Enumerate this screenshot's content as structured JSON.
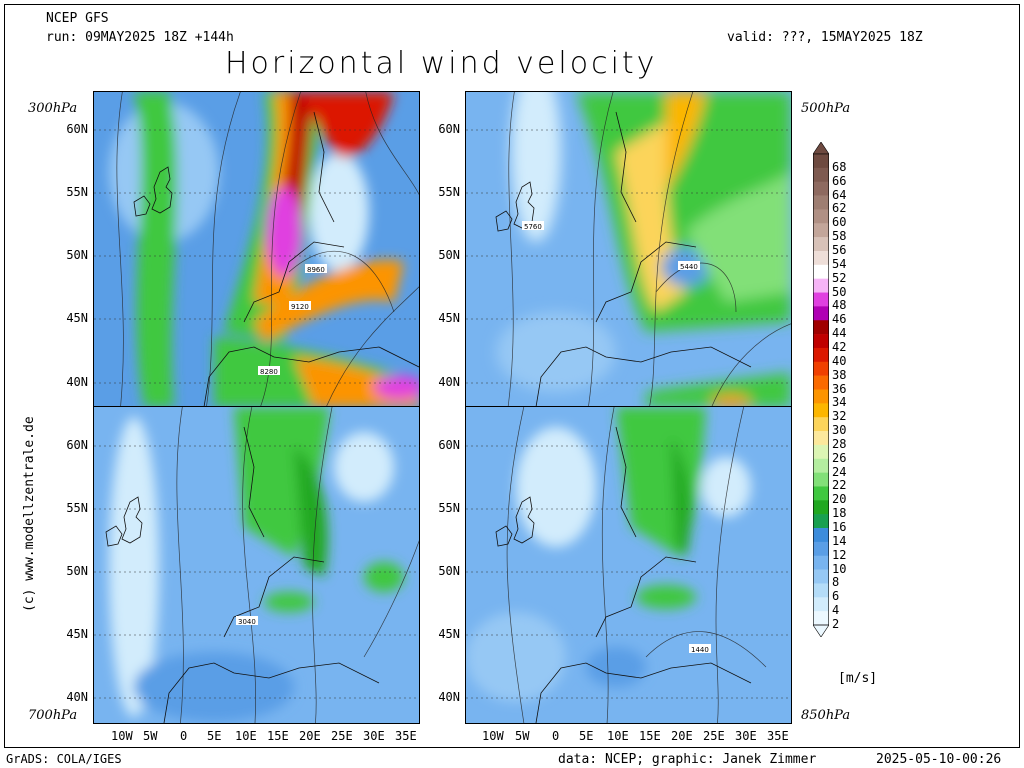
{
  "header": {
    "model": "NCEP GFS",
    "run": "run: 09MAY2025 18Z +144h",
    "valid": "valid: ???, 15MAY2025 18Z",
    "title": "Horizontal wind velocity"
  },
  "panels": {
    "p300": {
      "level": "300hPa",
      "contour_labels": [
        "8960",
        "9120",
        "8280"
      ]
    },
    "p500": {
      "level": "500hPa",
      "contour_labels": [
        "5760",
        "5440"
      ]
    },
    "p700": {
      "level": "700hPa",
      "contour_labels": [
        "3040"
      ]
    },
    "p850": {
      "level": "850hPa",
      "contour_labels": [
        "1440"
      ]
    }
  },
  "lat_labels": [
    "60N",
    "55N",
    "50N",
    "45N",
    "40N"
  ],
  "lon_labels": [
    "10W",
    "5W",
    "0",
    "5E",
    "10E",
    "15E",
    "20E",
    "25E",
    "30E",
    "35E"
  ],
  "colorbar": {
    "unit": "[m/s]",
    "values": [
      "68",
      "66",
      "64",
      "62",
      "60",
      "58",
      "56",
      "54",
      "52",
      "50",
      "48",
      "46",
      "44",
      "42",
      "40",
      "38",
      "36",
      "34",
      "32",
      "30",
      "28",
      "26",
      "24",
      "22",
      "20",
      "18",
      "16",
      "14",
      "12",
      "10",
      "8",
      "6",
      "4",
      "2"
    ],
    "colors": [
      "#6e4a40",
      "#7e5a50",
      "#8e6a60",
      "#9e7e72",
      "#b09084",
      "#c3a69a",
      "#d8c2b8",
      "#eeded8",
      "#ffffff",
      "#f6b4f6",
      "#e040e0",
      "#b000b4",
      "#a00000",
      "#c00000",
      "#dc1800",
      "#f04000",
      "#fa6a00",
      "#fc9400",
      "#fcb600",
      "#fcd45a",
      "#fce89c",
      "#dcf5b4",
      "#b4eea0",
      "#82e078",
      "#40c840",
      "#20a820",
      "#18a050",
      "#3c8cdc",
      "#5a9ee6",
      "#78b4f0",
      "#96c8f4",
      "#b4dcf8",
      "#d2ecfc",
      "#ecf8ff"
    ]
  },
  "side_credit": "(c) www.modellzentrale.de",
  "footer": {
    "grads": "GrADS: COLA/IGES",
    "data": "data: NCEP; graphic: Janek Zimmer",
    "date": "2025-05-10-00:26"
  }
}
